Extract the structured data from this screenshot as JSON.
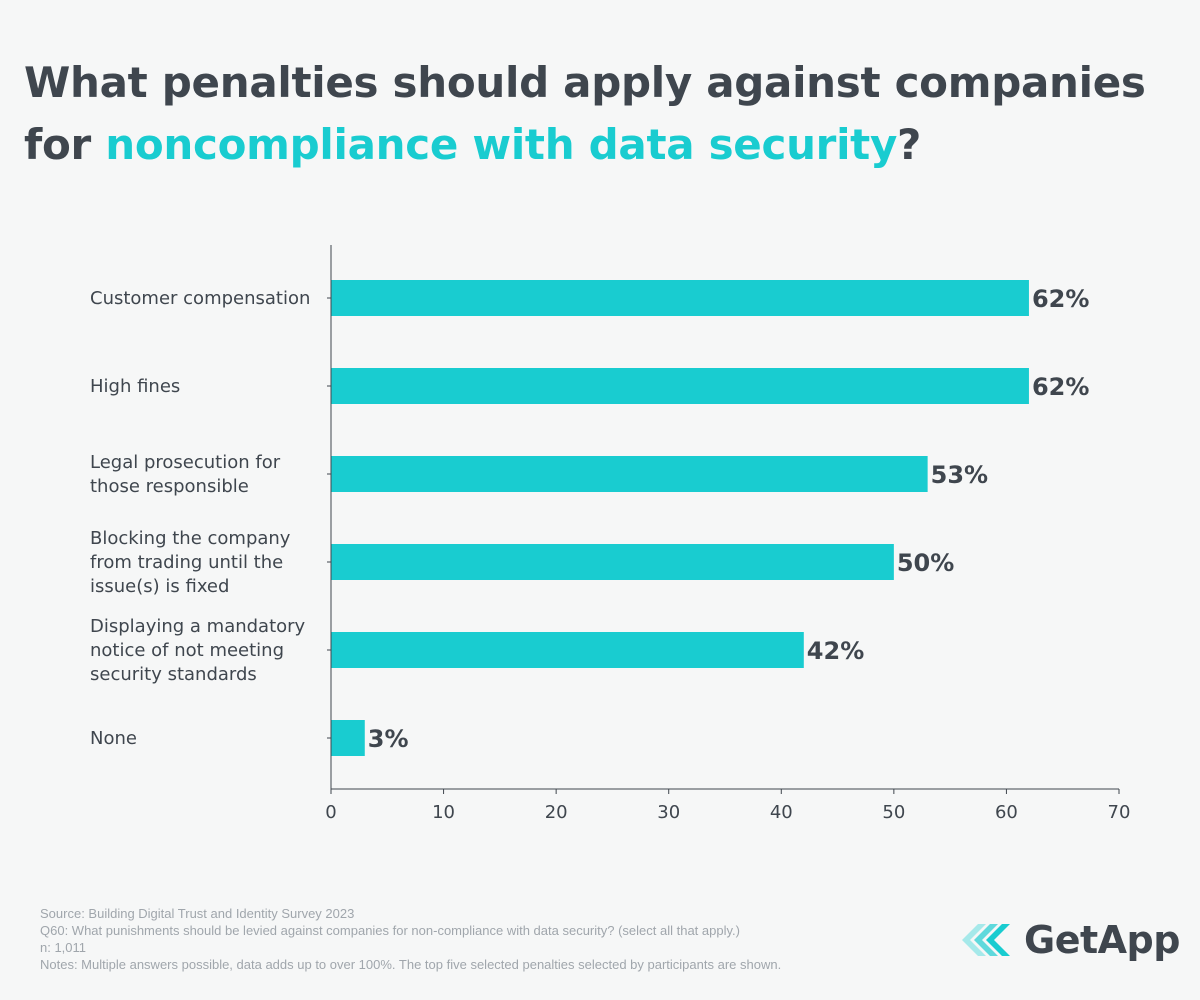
{
  "title": {
    "part1": "What penalties should apply against companies",
    "part2": "for ",
    "highlight": "noncompliance with data security",
    "part3": "?"
  },
  "colors": {
    "bar": "#19ccd0",
    "text": "#3f464e",
    "highlight": "#19ccd0"
  },
  "chart_data": {
    "type": "bar",
    "orientation": "horizontal",
    "categories": [
      [
        "Customer compensation"
      ],
      [
        "High fines"
      ],
      [
        "Legal prosecution for",
        "those responsible"
      ],
      [
        "Blocking the company",
        "from trading until the",
        "issue(s) is fixed"
      ],
      [
        "Displaying a mandatory",
        "notice of not meeting",
        "security standards"
      ],
      [
        "None"
      ]
    ],
    "values": [
      62,
      62,
      53,
      50,
      42,
      3
    ],
    "value_labels": [
      "62%",
      "62%",
      "53%",
      "50%",
      "42%",
      "3%"
    ],
    "xlim": [
      0,
      70
    ],
    "xticks": [
      0,
      10,
      20,
      30,
      40,
      50,
      60,
      70
    ],
    "grid": false
  },
  "footer": {
    "source": "Source: Building Digital Trust and Identity Survey 2023",
    "question": "Q60: What punishments should be levied against companies for non-compliance with data security? (select all that apply.)",
    "n": "n: 1,011",
    "notes": "Notes: Multiple answers possible, data adds up to over 100%. The top five selected penalties selected by participants are shown."
  },
  "logo": {
    "text": "GetApp",
    "icon": "getapp-chevrons-icon"
  }
}
